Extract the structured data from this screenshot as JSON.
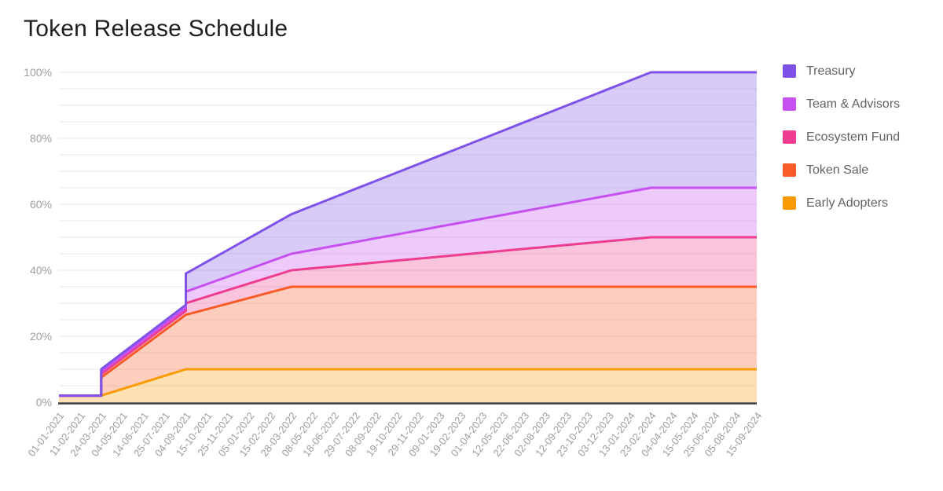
{
  "title": "Token Release Schedule",
  "legend": [
    {
      "label": "Treasury",
      "color": "#7e52e8"
    },
    {
      "label": "Team & Advisors",
      "color": "#c750f0"
    },
    {
      "label": "Ecosystem Fund",
      "color": "#ee3d90"
    },
    {
      "label": "Token Sale",
      "color": "#f95b28"
    },
    {
      "label": "Early Adopters",
      "color": "#fb9b04"
    }
  ],
  "chart_data": {
    "type": "area",
    "stacked": true,
    "title": "Token Release Schedule",
    "xlabel": "",
    "ylabel": "",
    "ylim": [
      0,
      100
    ],
    "y_tick_labels": [
      "0%",
      "20%",
      "40%",
      "60%",
      "80%",
      "100%"
    ],
    "y_minor_grid_step_percent": 5,
    "grid": true,
    "legend_position": "right",
    "x_tick_rotation_deg": -53,
    "x_labels": [
      "01-01-2021",
      "11-02-2021",
      "24-03-2021",
      "04-05-2021",
      "14-06-2021",
      "25-07-2021",
      "04-09-2021",
      "15-10-2021",
      "25-11-2021",
      "05-01-2022",
      "15-02-2022",
      "28-03-2022",
      "08-05-2022",
      "18-06-2022",
      "29-07-2022",
      "08-09-2022",
      "19-10-2022",
      "29-11-2022",
      "09-01-2023",
      "19-02-2023",
      "01-04-2023",
      "12-05-2023",
      "22-06-2023",
      "02-08-2023",
      "12-09-2023",
      "23-10-2023",
      "03-12-2023",
      "13-01-2024",
      "23-02-2024",
      "04-04-2024",
      "15-05-2024",
      "25-06-2024",
      "05-08-2024",
      "15-09-2024"
    ],
    "series_note": "stack order bottom-to-top; points are [x_label_index, percent_of_supply]; duplicate indices encode cliff unlocks (vertical steps at 24-03-2021 and 04-09-2021)",
    "series": [
      {
        "name": "Early Adopters",
        "color": "#fb9b04",
        "total_percent": 10,
        "points": [
          [
            0,
            2
          ],
          [
            2,
            2
          ],
          [
            6,
            10
          ],
          [
            33,
            10
          ]
        ]
      },
      {
        "name": "Token Sale",
        "color": "#f95b28",
        "total_percent": 25,
        "points": [
          [
            0,
            0
          ],
          [
            2,
            0
          ],
          [
            2,
            5.5
          ],
          [
            6,
            16.5
          ],
          [
            11,
            25
          ],
          [
            33,
            25
          ]
        ]
      },
      {
        "name": "Ecosystem Fund",
        "color": "#ee3d90",
        "total_percent": 15,
        "points": [
          [
            0,
            0
          ],
          [
            2,
            0
          ],
          [
            2,
            1
          ],
          [
            6,
            1.2
          ],
          [
            6,
            3.5
          ],
          [
            11,
            5
          ],
          [
            28,
            15
          ],
          [
            33,
            15
          ]
        ]
      },
      {
        "name": "Team & Advisors",
        "color": "#c750f0",
        "total_percent": 15,
        "points": [
          [
            0,
            0
          ],
          [
            2,
            0
          ],
          [
            2,
            0.75
          ],
          [
            6,
            0.9
          ],
          [
            6,
            3.5
          ],
          [
            11,
            5
          ],
          [
            28,
            15
          ],
          [
            33,
            15
          ]
        ]
      },
      {
        "name": "Treasury",
        "color": "#7e52e8",
        "total_percent": 35,
        "points": [
          [
            0,
            0
          ],
          [
            2,
            0
          ],
          [
            2,
            0.75
          ],
          [
            6,
            0.9
          ],
          [
            6,
            5.5
          ],
          [
            11,
            12
          ],
          [
            28,
            35
          ],
          [
            33,
            35
          ]
        ]
      }
    ],
    "cumulative_top_at_key_dates": {
      "01-01-2021": 2,
      "24-03-2021": 10,
      "04-09-2021": 39,
      "28-03-2022": 57,
      "23-02-2024": 100,
      "15-09-2024": 100
    }
  },
  "colors": {
    "axis_line": "#3d3d3d",
    "gridline": "#e8e8e8",
    "axis_label": "#9e9e9e",
    "legend_text": "#5f6368",
    "title_text": "#1f1f1f",
    "background": "#ffffff",
    "fill_opacity": 0.3
  }
}
